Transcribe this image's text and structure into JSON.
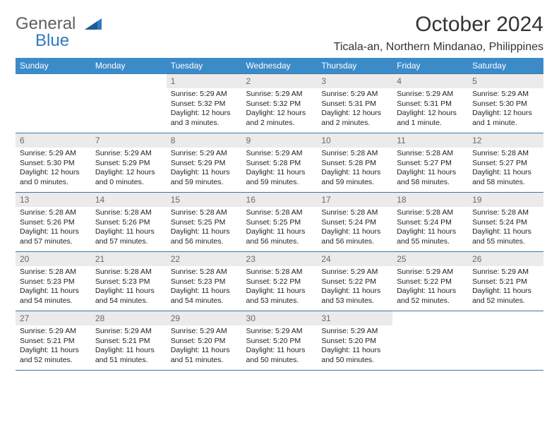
{
  "brand": {
    "part1": "General",
    "part2": "Blue"
  },
  "title": "October 2024",
  "location": "Ticala-an, Northern Mindanao, Philippines",
  "theme": {
    "header_bg": "#3b8bc9",
    "header_text": "#ffffff",
    "daynum_bg": "#eceaea",
    "daynum_text": "#6a6a6a",
    "border_color": "#3b77a7",
    "brand_gray": "#5f5f5f",
    "brand_blue": "#2f7bbf"
  },
  "weekdays": [
    "Sunday",
    "Monday",
    "Tuesday",
    "Wednesday",
    "Thursday",
    "Friday",
    "Saturday"
  ],
  "weeks": [
    [
      null,
      null,
      {
        "n": "1",
        "sunrise": "5:29 AM",
        "sunset": "5:32 PM",
        "daylight": "12 hours and 3 minutes."
      },
      {
        "n": "2",
        "sunrise": "5:29 AM",
        "sunset": "5:32 PM",
        "daylight": "12 hours and 2 minutes."
      },
      {
        "n": "3",
        "sunrise": "5:29 AM",
        "sunset": "5:31 PM",
        "daylight": "12 hours and 2 minutes."
      },
      {
        "n": "4",
        "sunrise": "5:29 AM",
        "sunset": "5:31 PM",
        "daylight": "12 hours and 1 minute."
      },
      {
        "n": "5",
        "sunrise": "5:29 AM",
        "sunset": "5:30 PM",
        "daylight": "12 hours and 1 minute."
      }
    ],
    [
      {
        "n": "6",
        "sunrise": "5:29 AM",
        "sunset": "5:30 PM",
        "daylight": "12 hours and 0 minutes."
      },
      {
        "n": "7",
        "sunrise": "5:29 AM",
        "sunset": "5:29 PM",
        "daylight": "12 hours and 0 minutes."
      },
      {
        "n": "8",
        "sunrise": "5:29 AM",
        "sunset": "5:29 PM",
        "daylight": "11 hours and 59 minutes."
      },
      {
        "n": "9",
        "sunrise": "5:29 AM",
        "sunset": "5:28 PM",
        "daylight": "11 hours and 59 minutes."
      },
      {
        "n": "10",
        "sunrise": "5:28 AM",
        "sunset": "5:28 PM",
        "daylight": "11 hours and 59 minutes."
      },
      {
        "n": "11",
        "sunrise": "5:28 AM",
        "sunset": "5:27 PM",
        "daylight": "11 hours and 58 minutes."
      },
      {
        "n": "12",
        "sunrise": "5:28 AM",
        "sunset": "5:27 PM",
        "daylight": "11 hours and 58 minutes."
      }
    ],
    [
      {
        "n": "13",
        "sunrise": "5:28 AM",
        "sunset": "5:26 PM",
        "daylight": "11 hours and 57 minutes."
      },
      {
        "n": "14",
        "sunrise": "5:28 AM",
        "sunset": "5:26 PM",
        "daylight": "11 hours and 57 minutes."
      },
      {
        "n": "15",
        "sunrise": "5:28 AM",
        "sunset": "5:25 PM",
        "daylight": "11 hours and 56 minutes."
      },
      {
        "n": "16",
        "sunrise": "5:28 AM",
        "sunset": "5:25 PM",
        "daylight": "11 hours and 56 minutes."
      },
      {
        "n": "17",
        "sunrise": "5:28 AM",
        "sunset": "5:24 PM",
        "daylight": "11 hours and 56 minutes."
      },
      {
        "n": "18",
        "sunrise": "5:28 AM",
        "sunset": "5:24 PM",
        "daylight": "11 hours and 55 minutes."
      },
      {
        "n": "19",
        "sunrise": "5:28 AM",
        "sunset": "5:24 PM",
        "daylight": "11 hours and 55 minutes."
      }
    ],
    [
      {
        "n": "20",
        "sunrise": "5:28 AM",
        "sunset": "5:23 PM",
        "daylight": "11 hours and 54 minutes."
      },
      {
        "n": "21",
        "sunrise": "5:28 AM",
        "sunset": "5:23 PM",
        "daylight": "11 hours and 54 minutes."
      },
      {
        "n": "22",
        "sunrise": "5:28 AM",
        "sunset": "5:23 PM",
        "daylight": "11 hours and 54 minutes."
      },
      {
        "n": "23",
        "sunrise": "5:28 AM",
        "sunset": "5:22 PM",
        "daylight": "11 hours and 53 minutes."
      },
      {
        "n": "24",
        "sunrise": "5:29 AM",
        "sunset": "5:22 PM",
        "daylight": "11 hours and 53 minutes."
      },
      {
        "n": "25",
        "sunrise": "5:29 AM",
        "sunset": "5:22 PM",
        "daylight": "11 hours and 52 minutes."
      },
      {
        "n": "26",
        "sunrise": "5:29 AM",
        "sunset": "5:21 PM",
        "daylight": "11 hours and 52 minutes."
      }
    ],
    [
      {
        "n": "27",
        "sunrise": "5:29 AM",
        "sunset": "5:21 PM",
        "daylight": "11 hours and 52 minutes."
      },
      {
        "n": "28",
        "sunrise": "5:29 AM",
        "sunset": "5:21 PM",
        "daylight": "11 hours and 51 minutes."
      },
      {
        "n": "29",
        "sunrise": "5:29 AM",
        "sunset": "5:20 PM",
        "daylight": "11 hours and 51 minutes."
      },
      {
        "n": "30",
        "sunrise": "5:29 AM",
        "sunset": "5:20 PM",
        "daylight": "11 hours and 50 minutes."
      },
      {
        "n": "31",
        "sunrise": "5:29 AM",
        "sunset": "5:20 PM",
        "daylight": "11 hours and 50 minutes."
      },
      null,
      null
    ]
  ]
}
